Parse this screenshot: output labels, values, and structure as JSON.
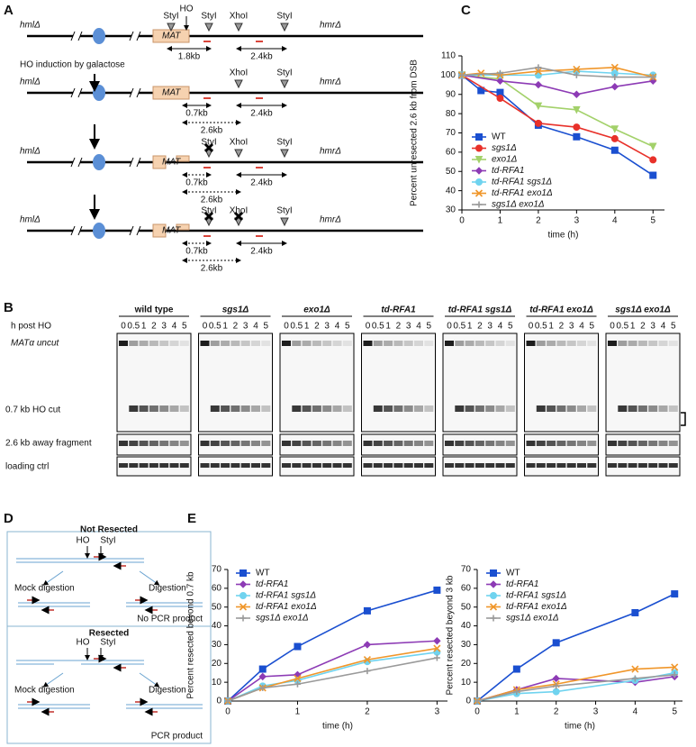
{
  "panel_a": {
    "label": "A",
    "step": "HO induction by galactose",
    "rows": [
      {
        "left": "hmlΔ",
        "right": "hmrΔ",
        "mat": "MAT",
        "sites": [
          "StyI",
          "HO",
          "StyI",
          "XhoI",
          "StyI"
        ],
        "distances": [
          "1.8kb",
          "2.4kb"
        ]
      },
      {
        "left": "hmlΔ",
        "right": "hmrΔ",
        "mat": "MAT",
        "sites": [
          "XhoI",
          "StyI"
        ],
        "distances": [
          "0.7kb",
          "2.4kb",
          "2.6kb"
        ]
      },
      {
        "left": "hmlΔ",
        "right": "hmrΔ",
        "mat": "MAT",
        "sites": [
          "StyI",
          "XhoI",
          "StyI"
        ],
        "distances": [
          "0.7kb",
          "2.4kb",
          "2.6kb"
        ]
      },
      {
        "left": "hmlΔ",
        "right": "hmrΔ",
        "mat": "MAT",
        "sites": [
          "StyI",
          "XhoI",
          "StyI"
        ],
        "distances": [
          "0.7kb",
          "2.4kb",
          "2.6kb"
        ]
      }
    ]
  },
  "panel_b": {
    "label": "B",
    "time_header": "h post HO",
    "lanes": [
      "0",
      "0.5",
      "1",
      "2",
      "3",
      "4",
      "5"
    ],
    "strains": [
      "wild type",
      "sgs1Δ",
      "exo1Δ",
      "td-RFA1",
      "td-RFA1 sgs1Δ",
      "td-RFA1 exo1Δ",
      "sgs1Δ exo1Δ"
    ],
    "rows": [
      "MATα uncut",
      "0.7 kb HO cut",
      "2.6 kb away fragment",
      "loading ctrl"
    ]
  },
  "panel_d": {
    "label": "D",
    "boxes": [
      {
        "title": "Not Resected",
        "ho": "HO",
        "site": "StyI",
        "mock": "Mock digestion",
        "digestion": "Digestion",
        "result": "No PCR product"
      },
      {
        "title": "Resected",
        "ho": "HO",
        "site": "StyI",
        "mock": "Mock digestion",
        "digestion": "Digestion",
        "result": "PCR product"
      }
    ]
  },
  "chart_data": [
    {
      "type": "line",
      "panel_label": "C",
      "xlabel": "time (h)",
      "ylabel": "Percent unresected 2.6 kb from DSB",
      "xlim": [
        0,
        5.3
      ],
      "xticks": [
        0,
        1,
        2,
        3,
        4,
        5
      ],
      "ylim": [
        30,
        110
      ],
      "yticks": [
        30,
        40,
        50,
        60,
        70,
        80,
        90,
        100,
        110
      ],
      "series": [
        {
          "name": "WT",
          "color": "#1a4fd0",
          "marker": "square",
          "x": [
            0,
            0.5,
            1,
            2,
            3,
            4,
            5
          ],
          "values": [
            100,
            92,
            91,
            74,
            68,
            61,
            48
          ]
        },
        {
          "name": "sgs1Δ",
          "color": "#e8312a",
          "marker": "circle",
          "x": [
            0,
            1,
            2,
            3,
            4,
            5
          ],
          "values": [
            100,
            88,
            75,
            73,
            67,
            56
          ]
        },
        {
          "name": "exo1Δ",
          "color": "#a3d16a",
          "marker": "triangle",
          "x": [
            0,
            1,
            2,
            3,
            4,
            5
          ],
          "values": [
            100,
            98,
            84,
            82,
            72,
            63
          ]
        },
        {
          "name": "td-RFA1",
          "color": "#8d3bb5",
          "marker": "diamond",
          "x": [
            0,
            1,
            2,
            3,
            4,
            5
          ],
          "values": [
            100,
            97,
            95,
            90,
            94,
            97
          ]
        },
        {
          "name": "td-RFA1 sgs1Δ",
          "color": "#6fd3ef",
          "marker": "circle",
          "x": [
            0,
            1,
            2,
            3,
            4,
            5
          ],
          "values": [
            100,
            100,
            100,
            102,
            101,
            100
          ]
        },
        {
          "name": "td-RFA1 exo1Δ",
          "color": "#f0962a",
          "marker": "x",
          "x": [
            0,
            0.5,
            1,
            2,
            3,
            4,
            5
          ],
          "values": [
            100,
            101,
            100,
            102,
            103,
            104,
            99
          ]
        },
        {
          "name": "sgs1Δ exo1Δ",
          "color": "#9a9a9a",
          "marker": "plus",
          "x": [
            0,
            1,
            2,
            3,
            4,
            5
          ],
          "values": [
            100,
            101,
            104,
            100,
            99,
            99
          ]
        }
      ]
    },
    {
      "type": "line",
      "panel_label": "E",
      "xlabel": "time (h)",
      "ylabel": "Percent resected beyond 0.7 kb",
      "xlim": [
        0,
        3.15
      ],
      "xticks": [
        0,
        1,
        2,
        3
      ],
      "ylim": [
        0,
        70
      ],
      "yticks": [
        0,
        10,
        20,
        30,
        40,
        50,
        60,
        70
      ],
      "series": [
        {
          "name": "WT",
          "color": "#1a4fd0",
          "marker": "square",
          "x": [
            0,
            0.5,
            1,
            2,
            3
          ],
          "values": [
            0,
            17,
            29,
            48,
            59
          ]
        },
        {
          "name": "td-RFA1",
          "color": "#8d3bb5",
          "marker": "diamond",
          "x": [
            0,
            0.5,
            1,
            2,
            3
          ],
          "values": [
            0,
            13,
            14,
            30,
            32
          ]
        },
        {
          "name": "td-RFA1 sgs1Δ",
          "color": "#6fd3ef",
          "marker": "circle",
          "x": [
            0,
            0.5,
            1,
            2,
            3
          ],
          "values": [
            0,
            8,
            11,
            21,
            26
          ]
        },
        {
          "name": "td-RFA1 exo1Δ",
          "color": "#f0962a",
          "marker": "x",
          "x": [
            0,
            0.5,
            1,
            2,
            3
          ],
          "values": [
            0,
            7,
            12,
            22,
            28
          ]
        },
        {
          "name": "sgs1Δ exo1Δ",
          "color": "#9a9a9a",
          "marker": "plus",
          "x": [
            0,
            0.5,
            1,
            2,
            3
          ],
          "values": [
            0,
            7,
            9,
            16,
            23
          ]
        }
      ]
    },
    {
      "type": "line",
      "xlabel": "time (h)",
      "ylabel": "Percent resected beyond 3 kb",
      "xlim": [
        0,
        5.2
      ],
      "xticks": [
        0,
        1,
        2,
        3,
        4,
        5
      ],
      "ylim": [
        0,
        70
      ],
      "yticks": [
        0,
        10,
        20,
        30,
        40,
        50,
        60,
        70
      ],
      "series": [
        {
          "name": "WT",
          "color": "#1a4fd0",
          "marker": "square",
          "x": [
            0,
            1,
            2,
            4,
            5
          ],
          "values": [
            0,
            17,
            31,
            47,
            57
          ]
        },
        {
          "name": "td-RFA1",
          "color": "#8d3bb5",
          "marker": "diamond",
          "x": [
            0,
            1,
            2,
            4,
            5
          ],
          "values": [
            0,
            6,
            12,
            10,
            13
          ]
        },
        {
          "name": "td-RFA1 sgs1Δ",
          "color": "#6fd3ef",
          "marker": "circle",
          "x": [
            0,
            1,
            2,
            4,
            5
          ],
          "values": [
            0,
            4,
            5,
            11,
            15
          ]
        },
        {
          "name": "td-RFA1 exo1Δ",
          "color": "#f0962a",
          "marker": "x",
          "x": [
            0,
            1,
            2,
            4,
            5
          ],
          "values": [
            0,
            6,
            9,
            17,
            18
          ]
        },
        {
          "name": "sgs1Δ exo1Δ",
          "color": "#9a9a9a",
          "marker": "plus",
          "x": [
            0,
            1,
            2,
            4,
            5
          ],
          "values": [
            0,
            5,
            8,
            12,
            14
          ]
        }
      ]
    }
  ]
}
